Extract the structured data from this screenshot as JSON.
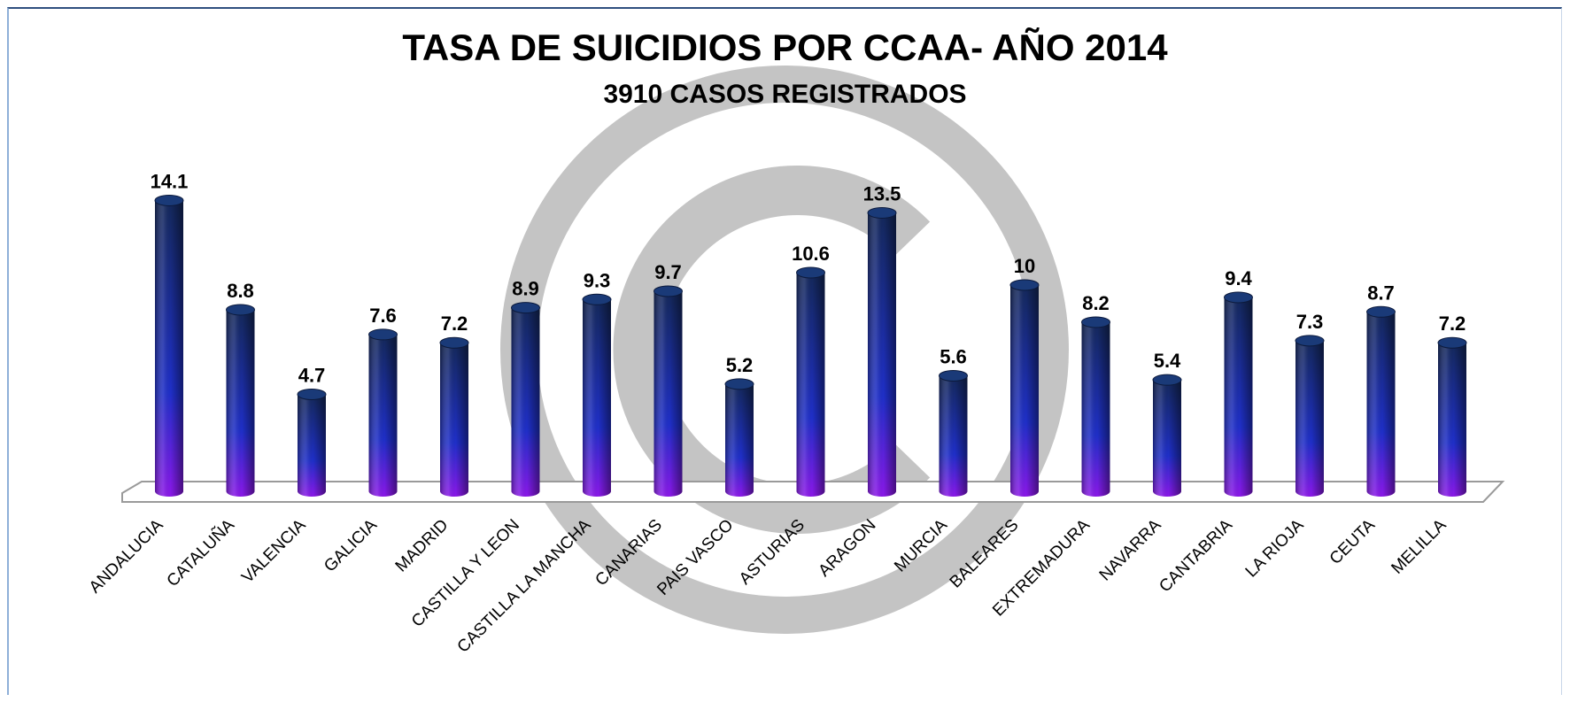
{
  "chart_data": {
    "type": "bar",
    "title": "TASA DE SUICIDIOS POR CCAA- AÑO 2014",
    "subtitle": "3910 CASOS REGISTRADOS",
    "categories": [
      "ANDALUCIA",
      "CATALUÑA",
      "VALENCIA",
      "GALICIA",
      "MADRID",
      "CASTILLA Y LEON",
      "CASTILLA LA MANCHA",
      "CANARIAS",
      "PAIS VASCO",
      "ASTURIAS",
      "ARAGON",
      "MURCIA",
      "BALEARES",
      "EXTREMADURA",
      "NAVARRA",
      "CANTABRIA",
      "LA RIOJA",
      "CEUTA",
      "MELILLA"
    ],
    "values": [
      14.1,
      8.8,
      4.7,
      7.6,
      7.2,
      8.9,
      9.3,
      9.7,
      5.2,
      10.6,
      13.5,
      5.6,
      10,
      8.2,
      5.4,
      9.4,
      7.3,
      8.7,
      7.2
    ],
    "value_labels": [
      "14.1",
      "8.8",
      "4.7",
      "7.6",
      "7.2",
      "8.9",
      "9.3",
      "9.7",
      "5.2",
      "10.6",
      "13.5",
      "5.6",
      "10",
      "8.2",
      "5.4",
      "9.4",
      "7.3",
      "8.7",
      "7.2"
    ],
    "bar_style": "3D cylinder",
    "colors": {
      "bar_top": "#14285a",
      "bar_mid": "#1f2fc8",
      "bar_bottom": "#8a18e8"
    },
    "grid": false,
    "legend": "none"
  },
  "watermark": {
    "symbol": "©",
    "color": "#c4c4c4"
  }
}
